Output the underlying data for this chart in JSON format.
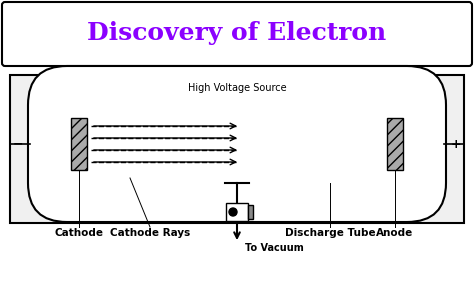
{
  "title": "Discovery of Electron",
  "title_color": "#8B00FF",
  "title_fontsize": 18,
  "title_fontstyle": "bold",
  "title_fontfamily": "serif",
  "bg_color": "#FFFFFF",
  "label_cathode": "Cathode",
  "label_cathode_rays": "Cathode Rays",
  "label_discharge_tube": "Discharge Tube",
  "label_anode": "Anode",
  "label_vacuum": "To Vacuum",
  "label_hvs": "High Voltage Source",
  "label_minus": "−",
  "label_plus": "+"
}
